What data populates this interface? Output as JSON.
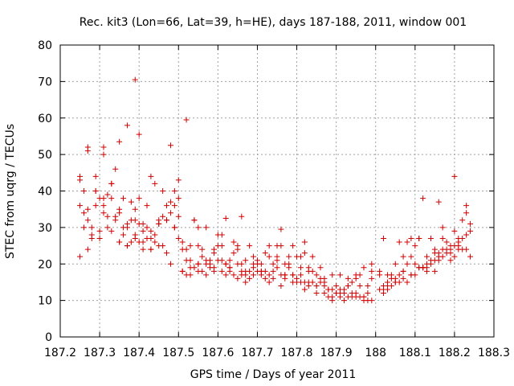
{
  "chart_data": {
    "type": "scatter",
    "title": "Rec. kit3 (Lon=66, Lat=39, h=HE), days 187-188, 2011, window 001",
    "xlabel": "GPS time / Days of year 2011",
    "ylabel": "STEC from uqrg / TECUs",
    "xlim": [
      187.2,
      188.3
    ],
    "ylim": [
      0,
      80
    ],
    "xticks": [
      187.2,
      187.3,
      187.4,
      187.5,
      187.6,
      187.7,
      187.8,
      187.9,
      188,
      188.1,
      188.2,
      188.3
    ],
    "xtick_labels": [
      "187.2",
      "187.3",
      "187.4",
      "187.5",
      "187.6",
      "187.7",
      "187.8",
      "187.9",
      "188",
      "188.1",
      "188.2",
      "188.3"
    ],
    "yticks": [
      0,
      10,
      20,
      30,
      40,
      50,
      60,
      70,
      80
    ],
    "ytick_labels": [
      "0",
      "10",
      "20",
      "30",
      "40",
      "50",
      "60",
      "70",
      "80"
    ],
    "grid": true,
    "marker": "plus",
    "color": "#d00000",
    "x": [
      187.25,
      187.26,
      187.27,
      187.28,
      187.29,
      187.3,
      187.31,
      187.32,
      187.33,
      187.34,
      187.35,
      187.36,
      187.37,
      187.38,
      187.39,
      187.4,
      187.41,
      187.42,
      187.43,
      187.44,
      187.45,
      187.46,
      187.47,
      187.48,
      187.49,
      187.5,
      187.51,
      187.52,
      187.53,
      187.54,
      187.55,
      187.56,
      187.57,
      187.58,
      187.59,
      187.6,
      187.61,
      187.62,
      187.63,
      187.64,
      187.65,
      187.66,
      187.67,
      187.68,
      187.69,
      187.7,
      187.71,
      187.72,
      187.73,
      187.74,
      187.75,
      187.76,
      187.77,
      187.78,
      187.79,
      187.8,
      187.81,
      187.82,
      187.83,
      187.84,
      187.85,
      187.86,
      187.87,
      187.88,
      187.89,
      187.9,
      187.91,
      187.92,
      187.93,
      187.94,
      187.95,
      187.96,
      187.97,
      187.98,
      187.99,
      188.01,
      188.02,
      188.03,
      188.04,
      188.05,
      188.06,
      188.07,
      188.08,
      188.09,
      188.1,
      188.11,
      188.12,
      188.13,
      188.14,
      188.15,
      188.16,
      188.17,
      188.18,
      188.19,
      188.2,
      188.21,
      188.22,
      188.23,
      188.24,
      187.25,
      187.26,
      187.27,
      187.28,
      187.29,
      187.3,
      187.31,
      187.32,
      187.33,
      187.34,
      187.35,
      187.36,
      187.37,
      187.38,
      187.39,
      187.4,
      187.41,
      187.42,
      187.43,
      187.44,
      187.45,
      187.46,
      187.47,
      187.48,
      187.49,
      187.5,
      187.51,
      187.52,
      187.53,
      187.54,
      187.55,
      187.56,
      187.57,
      187.58,
      187.59,
      187.6,
      187.61,
      187.62,
      187.63,
      187.64,
      187.65,
      187.66,
      187.67,
      187.68,
      187.69,
      187.7,
      187.71,
      187.72,
      187.73,
      187.74,
      187.75,
      187.76,
      187.77,
      187.78,
      187.79,
      187.8,
      187.81,
      187.82,
      187.83,
      187.84,
      187.85,
      187.86,
      187.87,
      187.88,
      187.89,
      187.9,
      187.91,
      187.92,
      187.93,
      187.94,
      187.95,
      187.96,
      187.97,
      187.98,
      187.99,
      188.01,
      188.02,
      188.03,
      188.04,
      188.05,
      188.06,
      188.07,
      188.08,
      188.09,
      188.1,
      188.11,
      188.12,
      188.13,
      188.14,
      188.15,
      188.16,
      188.17,
      188.18,
      188.19,
      188.2,
      188.21,
      188.22,
      188.23,
      188.24,
      187.25,
      187.26,
      187.27,
      187.28,
      187.29,
      187.3,
      187.31,
      187.32,
      187.33,
      187.34,
      187.35,
      187.36,
      187.37,
      187.38,
      187.39,
      187.4,
      187.41,
      187.42,
      187.43,
      187.44,
      187.45,
      187.46,
      187.47,
      187.48,
      187.49,
      187.5,
      187.51,
      187.52,
      187.53,
      187.54,
      187.55,
      187.56,
      187.57,
      187.58,
      187.59,
      187.6,
      187.61,
      187.62,
      187.63,
      187.64,
      187.65,
      187.66,
      187.67,
      187.68,
      187.69,
      187.7,
      187.71,
      187.72,
      187.73,
      187.74,
      187.75,
      187.76,
      187.77,
      187.78,
      187.79,
      187.8,
      187.81,
      187.82,
      187.83,
      187.84,
      187.85,
      187.86,
      187.87,
      187.88,
      187.89,
      187.9,
      187.91,
      187.92,
      187.93,
      187.94,
      187.95,
      187.96,
      187.97,
      187.98,
      187.99,
      188.01,
      188.02,
      188.03,
      188.04,
      188.05,
      188.06,
      188.07,
      188.08,
      188.09,
      188.1,
      188.11,
      188.12,
      188.13,
      188.14,
      188.15,
      188.16,
      188.17,
      188.18,
      188.19,
      188.2,
      188.21,
      188.22,
      188.23,
      188.24,
      187.25,
      187.27,
      187.29,
      187.31,
      187.33,
      187.35,
      187.37,
      187.39,
      187.41,
      187.43,
      187.45,
      187.47,
      187.49,
      187.51,
      187.53,
      187.55,
      187.57,
      187.59,
      187.61,
      187.63,
      187.65,
      187.67,
      187.69,
      187.71,
      187.73,
      187.75,
      187.77,
      187.79,
      187.81,
      187.83,
      187.85,
      187.87,
      187.89,
      187.91,
      187.93,
      187.95,
      187.97,
      187.99,
      188.03,
      188.05,
      188.07,
      188.09,
      188.11,
      188.13,
      188.15,
      188.17,
      188.19,
      188.21,
      188.23,
      187.39,
      187.52,
      187.37,
      187.48,
      187.4,
      187.35,
      187.27,
      187.31,
      187.43,
      187.5,
      187.55,
      187.62,
      187.66,
      187.76,
      187.82,
      188.02,
      188.12,
      188.2,
      188.16
    ],
    "y": [
      44,
      40,
      35,
      30,
      40,
      29,
      38,
      33,
      29,
      46,
      26,
      30,
      30,
      32,
      35,
      31,
      31,
      30,
      29,
      28,
      31,
      40,
      32,
      34,
      30,
      43,
      18,
      24,
      21,
      32,
      20,
      24,
      21,
      19,
      23,
      28,
      25,
      20,
      18,
      23,
      24,
      17,
      18,
      18,
      20,
      20,
      17,
      18,
      17,
      16,
      19,
      17,
      16,
      20,
      17,
      16,
      15,
      13,
      14,
      15,
      14,
      15,
      12,
      13,
      11,
      12,
      11,
      12,
      11,
      11,
      11,
      11,
      10,
      10,
      10,
      13,
      12,
      14,
      17,
      15,
      17,
      16,
      20,
      17,
      20,
      19,
      19,
      20,
      21,
      24,
      23,
      24,
      24,
      23,
      22,
      24,
      24,
      24,
      22,
      36,
      30,
      32,
      27,
      36,
      38,
      34,
      39,
      38,
      32,
      35,
      38,
      31,
      37,
      32,
      38,
      26,
      36,
      24,
      42,
      25,
      33,
      36,
      37,
      40,
      38,
      24,
      21,
      19,
      32,
      25,
      22,
      30,
      21,
      24,
      25,
      28,
      20,
      21,
      26,
      25,
      18,
      15,
      25,
      19,
      21,
      20,
      23,
      25,
      20,
      22,
      25,
      20,
      22,
      25,
      22,
      19,
      23,
      19,
      22,
      17,
      19,
      15,
      13,
      17,
      14,
      17,
      13,
      16,
      12,
      17,
      17,
      11,
      12,
      18,
      18,
      14,
      17,
      16,
      20,
      26,
      22,
      26,
      22,
      25,
      27,
      19,
      22,
      27,
      18,
      22,
      27,
      26,
      25,
      29,
      27,
      32,
      36,
      31,
      22,
      34,
      24,
      28,
      40,
      27,
      36,
      30,
      42,
      33,
      26,
      28,
      25,
      26,
      27,
      26,
      24,
      27,
      24,
      26,
      32,
      25,
      23,
      20,
      36,
      27,
      18,
      17,
      17,
      19,
      18,
      18,
      17,
      20,
      18,
      21,
      18,
      17,
      19,
      17,
      16,
      20,
      17,
      16,
      17,
      18,
      18,
      16,
      15,
      18,
      21,
      14,
      17,
      19,
      15,
      15,
      17,
      15,
      15,
      18,
      12,
      16,
      14,
      11,
      10,
      12,
      13,
      10,
      14,
      15,
      12,
      14,
      11,
      14,
      16,
      17,
      13,
      15,
      14,
      16,
      15,
      18,
      15,
      17,
      17,
      19,
      19,
      19,
      20,
      21,
      21,
      22,
      23,
      24,
      25,
      26,
      27,
      28,
      29,
      43,
      51,
      44,
      50,
      42,
      34,
      25,
      28,
      29,
      27,
      31,
      32,
      30,
      26,
      25,
      20,
      20,
      19,
      21,
      19,
      20,
      21,
      22,
      18,
      22,
      25,
      17,
      17,
      22,
      18,
      14,
      16,
      13,
      12,
      14,
      16,
      19,
      20,
      13,
      15,
      18,
      27,
      27,
      18,
      23,
      30,
      21,
      25,
      34,
      70.5,
      59.5,
      58,
      52.5,
      55.5,
      53.5,
      52,
      52,
      44,
      33,
      30,
      32.5,
      33,
      29.5,
      26,
      27,
      38,
      44,
      37
    ]
  }
}
